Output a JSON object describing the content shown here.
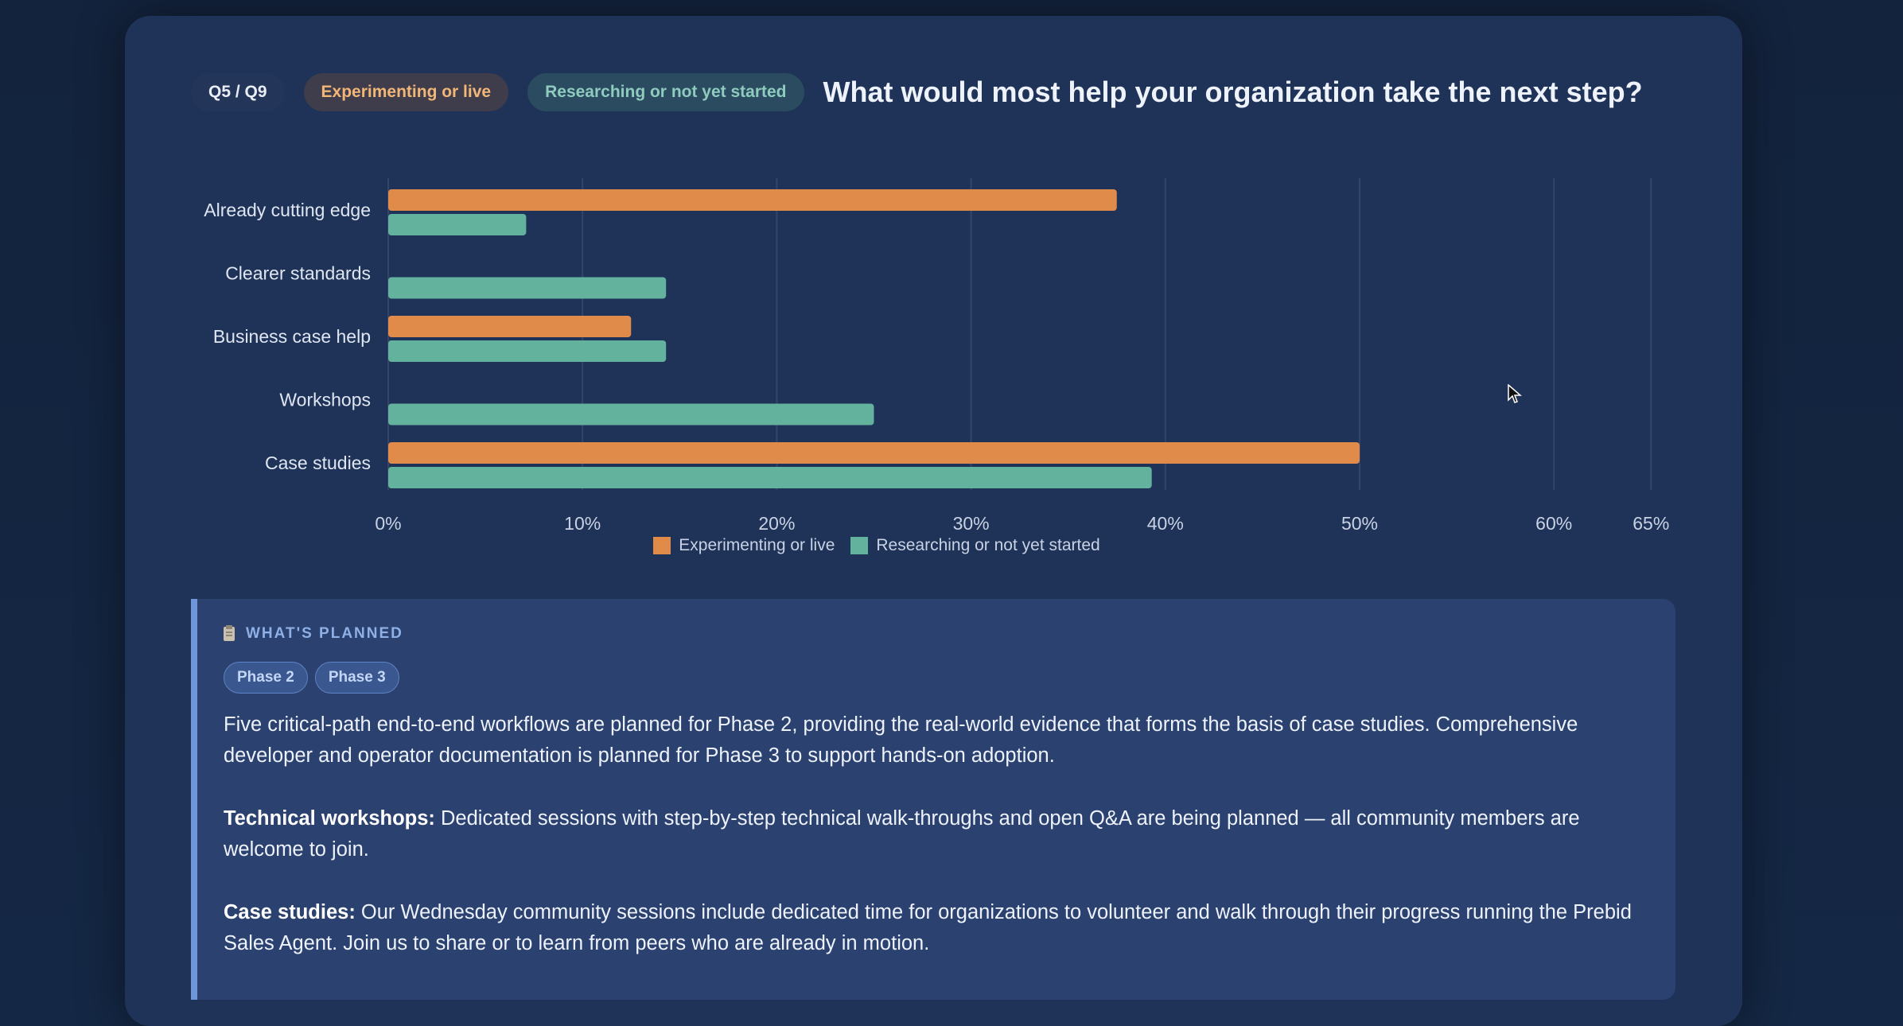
{
  "header": {
    "question_tag": "Q5 / Q9",
    "pill_experimenting": "Experimenting or live",
    "pill_researching": "Researching or not yet started",
    "title": "What would most help your organization take the next step?"
  },
  "colors": {
    "experimenting": "#e08b4a",
    "researching": "#63b29e",
    "card_background": "#1f3359"
  },
  "chart_data": {
    "type": "bar",
    "orientation": "horizontal",
    "categories": [
      "Already cutting edge",
      "Clearer standards",
      "Business case help",
      "Workshops",
      "Case studies"
    ],
    "series": [
      {
        "name": "Experimenting or live",
        "values": [
          37.5,
          0,
          12.5,
          0,
          50
        ]
      },
      {
        "name": "Researching or not yet started",
        "values": [
          7.1,
          14.3,
          14.3,
          25,
          39.3
        ]
      }
    ],
    "x_ticks": [
      "0%",
      "10%",
      "20%",
      "30%",
      "40%",
      "50%",
      "60%",
      "65%"
    ],
    "xlim": [
      0,
      65
    ],
    "grid": true,
    "legend": "bottom-center"
  },
  "legend": {
    "experimenting": "Experimenting or live",
    "researching": "Researching or not yet started"
  },
  "planned": {
    "heading": "WHAT'S PLANNED",
    "icon": "clipboard-icon",
    "phases": [
      "Phase 2",
      "Phase 3"
    ],
    "paragraph1": "Five critical-path end-to-end workflows are planned for Phase 2, providing the real-world evidence that forms the basis of case studies. Comprehensive developer and operator documentation is planned for Phase 3 to support hands-on adoption.",
    "workshops_label": "Technical workshops:",
    "workshops_text": " Dedicated sessions with step-by-step technical walk-throughs and open Q&A are being planned — all community members are welcome to join.",
    "case_label": "Case studies:",
    "case_text": " Our Wednesday community sessions include dedicated time for organizations to volunteer and walk through their progress running the Prebid Sales Agent. Join us to share or to learn from peers who are already in motion."
  }
}
